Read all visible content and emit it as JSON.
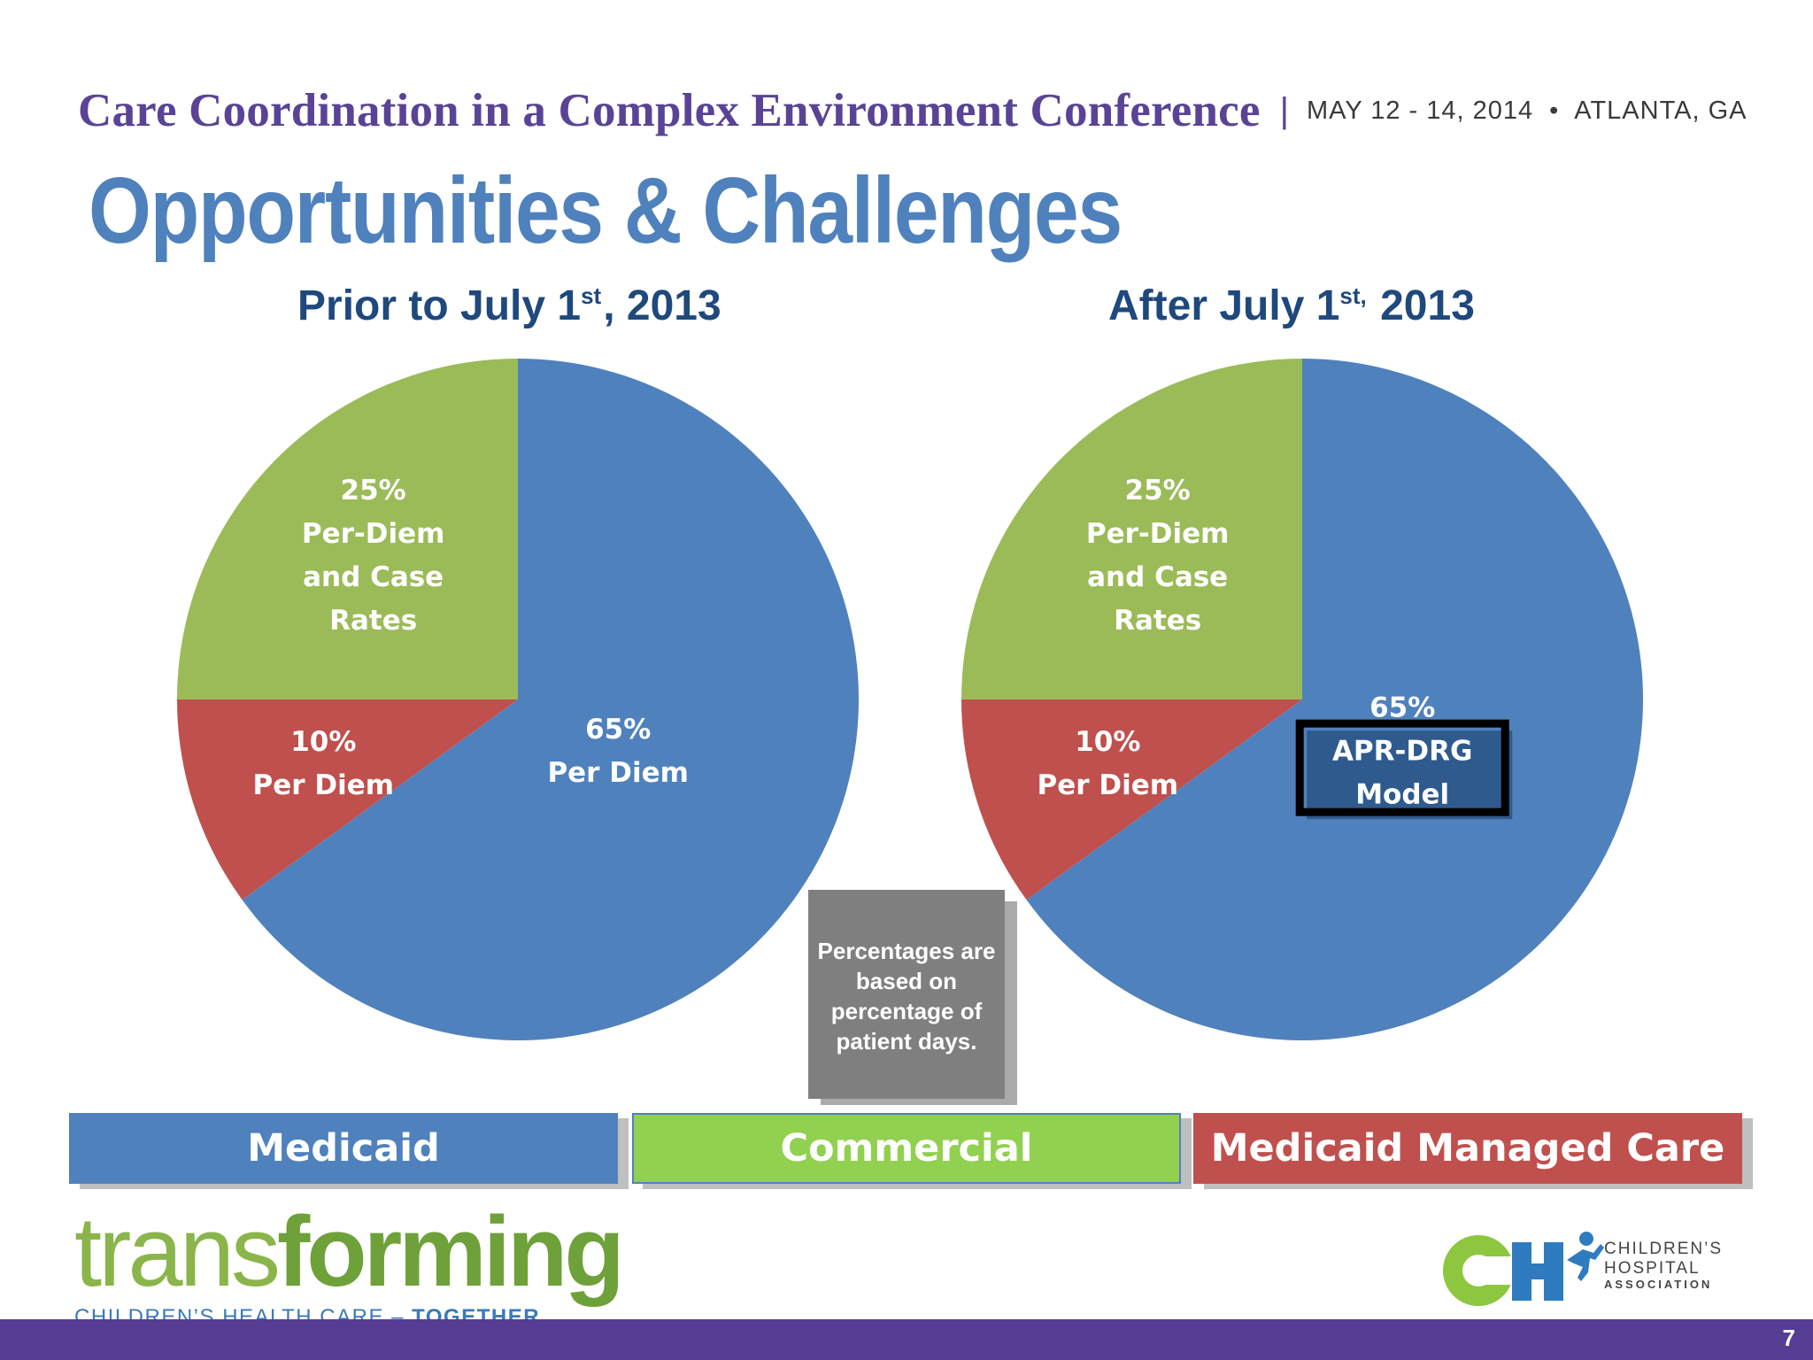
{
  "header": {
    "conference": "Care Coordination in a Complex Environment Conference",
    "separator": "|",
    "dates": "MAY 12 - 14, 2014",
    "dot": "•",
    "location": "ATLANTA, GA"
  },
  "slide": {
    "title": "Opportunities & Challenges",
    "page_number": "7"
  },
  "chart_data": [
    {
      "type": "pie",
      "title_parts": [
        "Prior to July 1",
        "st",
        ", 2013"
      ],
      "slices": [
        {
          "segment": "Medicaid",
          "value": 65,
          "label_lines": [
            "65%",
            "Per Diem"
          ],
          "color": "#4f81bd"
        },
        {
          "segment": "Medicaid Managed Care",
          "value": 10,
          "label_lines": [
            "10%",
            "Per Diem"
          ],
          "color": "#c0504d"
        },
        {
          "segment": "Commercial",
          "value": 25,
          "label_lines": [
            "25%",
            "Per-Diem",
            "and Case",
            "Rates"
          ],
          "color": "#9bbb59"
        }
      ]
    },
    {
      "type": "pie",
      "title_parts": [
        "After July 1",
        "st,",
        " 2013"
      ],
      "slices": [
        {
          "segment": "Medicaid",
          "value": 65,
          "label_lines": [
            "65%",
            "APR-DRG",
            "Model"
          ],
          "color": "#4f81bd",
          "highlight_box": true
        },
        {
          "segment": "Medicaid Managed Care",
          "value": 10,
          "label_lines": [
            "10%",
            "Per Diem"
          ],
          "color": "#c0504d"
        },
        {
          "segment": "Commercial",
          "value": 25,
          "label_lines": [
            "25%",
            "Per-Diem",
            "and Case",
            "Rates"
          ],
          "color": "#9bbb59"
        }
      ]
    }
  ],
  "note": {
    "text": "Percentages are based on percentage of patient days."
  },
  "legend": [
    {
      "label": "Medicaid",
      "color": "#4f81bd"
    },
    {
      "label": "Commercial",
      "color": "#92d050"
    },
    {
      "label": "Medicaid Managed Care",
      "color": "#c0504d"
    }
  ],
  "footer": {
    "logo_word_thin": "trans",
    "logo_word_bold": "forming",
    "tagline": "CHILDREN’S HEALTH CARE –",
    "tagline_bold": "TOGETHER",
    "cha_line1": "CHILDREN’S",
    "cha_line2": "HOSPITAL",
    "cha_line3": "ASSOCIATION"
  }
}
